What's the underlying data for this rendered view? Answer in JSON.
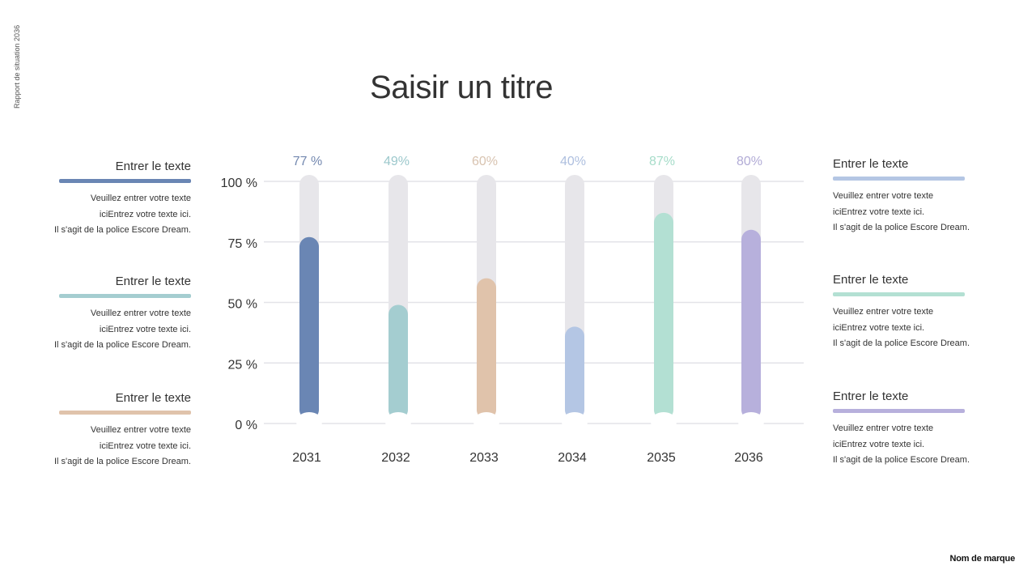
{
  "side_label": "Rapport de situation 2036",
  "title": "Saisir un titre",
  "brand": "Nom de marque",
  "left_blocks": [
    {
      "heading": "Entrer le texte",
      "color": "#6a86b4",
      "lines": [
        "Veuillez entrer votre texte",
        "iciEntrez votre texte ici.",
        "Il s'agit de la police Escore Dream."
      ]
    },
    {
      "heading": "Entrer le texte",
      "color": "#a4cdd0",
      "lines": [
        "Veuillez entrer votre texte",
        "iciEntrez votre texte ici.",
        "Il s'agit de la police Escore Dream."
      ]
    },
    {
      "heading": "Entrer le texte",
      "color": "#e0c3ab",
      "lines": [
        "Veuillez entrer votre texte",
        "iciEntrez votre texte ici.",
        "Il s'agit de la police Escore Dream."
      ]
    }
  ],
  "right_blocks": [
    {
      "heading": "Entrer le texte",
      "color": "#b4c6e4",
      "lines": [
        "Veuillez entrer votre texte",
        "iciEntrez votre texte ici.",
        "Il s'agit de la police Escore Dream."
      ]
    },
    {
      "heading": "Entrer le texte",
      "color": "#b3e0d3",
      "lines": [
        "Veuillez entrer votre texte",
        "iciEntrez votre texte ici.",
        "Il s'agit de la police Escore Dream."
      ]
    },
    {
      "heading": "Entrer le texte",
      "color": "#b7b0dc",
      "lines": [
        "Veuillez entrer votre texte",
        "iciEntrez votre texte ici.",
        "Il s'agit de la police Escore Dream."
      ]
    }
  ],
  "chart_data": {
    "type": "bar",
    "categories": [
      "2031",
      "2032",
      "2033",
      "2034",
      "2035",
      "2036"
    ],
    "values": [
      77,
      49,
      60,
      40,
      87,
      80
    ],
    "value_labels": [
      "77 %",
      "49%",
      "60%",
      "40%",
      "87%",
      "80%"
    ],
    "colors": [
      "#6a86b4",
      "#a4cdd0",
      "#e0c3ab",
      "#b4c6e4",
      "#b3e0d3",
      "#b7b0dc"
    ],
    "label_colors": [
      "#7489b0",
      "#9cc8cc",
      "#d8c3b0",
      "#aebfdf",
      "#a6dcc9",
      "#b2acd6"
    ],
    "track_color": "#e7e6ea",
    "yticks": [
      0,
      25,
      50,
      75,
      100
    ],
    "ytick_labels": [
      "0 %",
      "25 %",
      "50 %",
      "75 %",
      "100 %"
    ],
    "ylim": [
      0,
      100
    ],
    "grid": true
  }
}
